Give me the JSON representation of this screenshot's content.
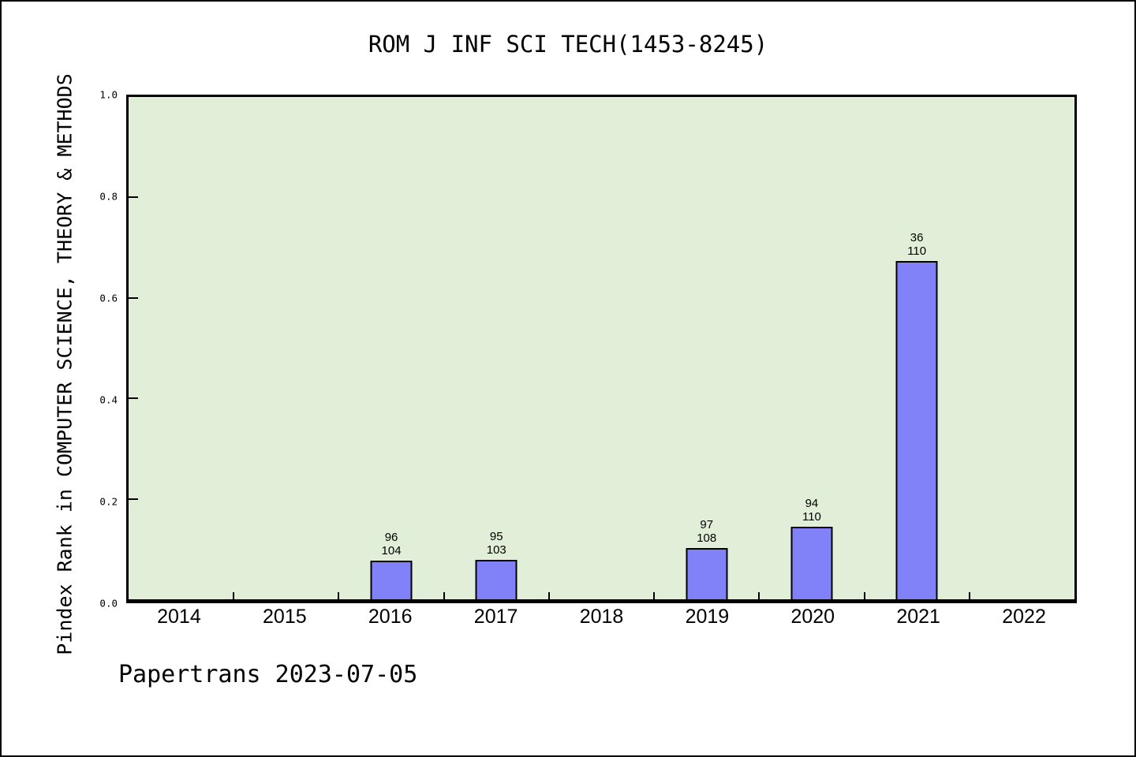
{
  "footer": {
    "text": "Papertrans 2023-07-05"
  },
  "chart_data": {
    "type": "bar",
    "title": "ROM J INF SCI TECH(1453-8245)",
    "xlabel": "",
    "ylabel": "Pindex Rank in COMPUTER SCIENCE, THEORY & METHODS",
    "categories": [
      "2014",
      "2015",
      "2016",
      "2017",
      "2018",
      "2019",
      "2020",
      "2021",
      "2022"
    ],
    "ylim": [
      0.0,
      1.0
    ],
    "yticks": [
      0.0,
      0.2,
      0.4,
      0.6,
      0.8,
      1.0
    ],
    "ytick_labels": [
      "0.0",
      "0.2",
      "0.4",
      "0.6",
      "0.8",
      "1.0"
    ],
    "grid": false,
    "legend": false,
    "plot_bg": "#E2EFD8",
    "bar_color": "#8181F8",
    "bar_edge_color": "#000000",
    "bars": [
      {
        "year": "2016",
        "value": 0.077,
        "rank": "96",
        "total": "104"
      },
      {
        "year": "2017",
        "value": 0.078,
        "rank": "95",
        "total": "103"
      },
      {
        "year": "2019",
        "value": 0.102,
        "rank": "97",
        "total": "108"
      },
      {
        "year": "2020",
        "value": 0.145,
        "rank": "94",
        "total": "110"
      },
      {
        "year": "2021",
        "value": 0.673,
        "rank": "36",
        "total": "110"
      }
    ]
  }
}
